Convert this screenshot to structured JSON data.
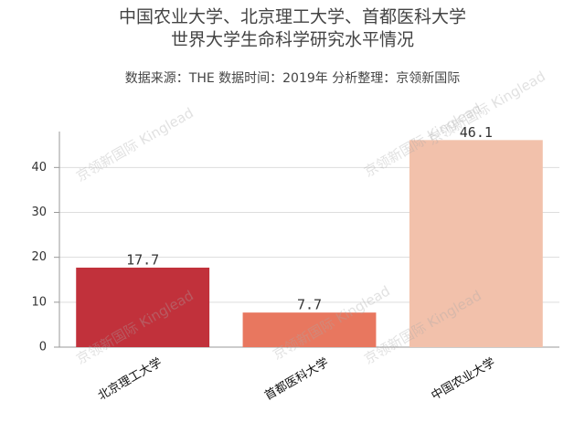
{
  "chart_data": {
    "type": "bar",
    "title": [
      "中国农业大学、北京理工大学、首都医科大学",
      "世界大学生命科学研究水平情况"
    ],
    "subtitle": "数据来源：THE 数据时间：2019年 分析整理：京领新国际",
    "watermark": "京领新国际 Kinglead",
    "categories": [
      "北京理工大学",
      "首都医科大学",
      "中国农业大学"
    ],
    "values": [
      17.7,
      7.7,
      46.1
    ],
    "colors": [
      "#c1313b",
      "#e8775f",
      "#f2c1ab"
    ],
    "ylim": [
      0,
      48
    ],
    "yticks": [
      0,
      10,
      20,
      30,
      40
    ],
    "grid": true
  }
}
